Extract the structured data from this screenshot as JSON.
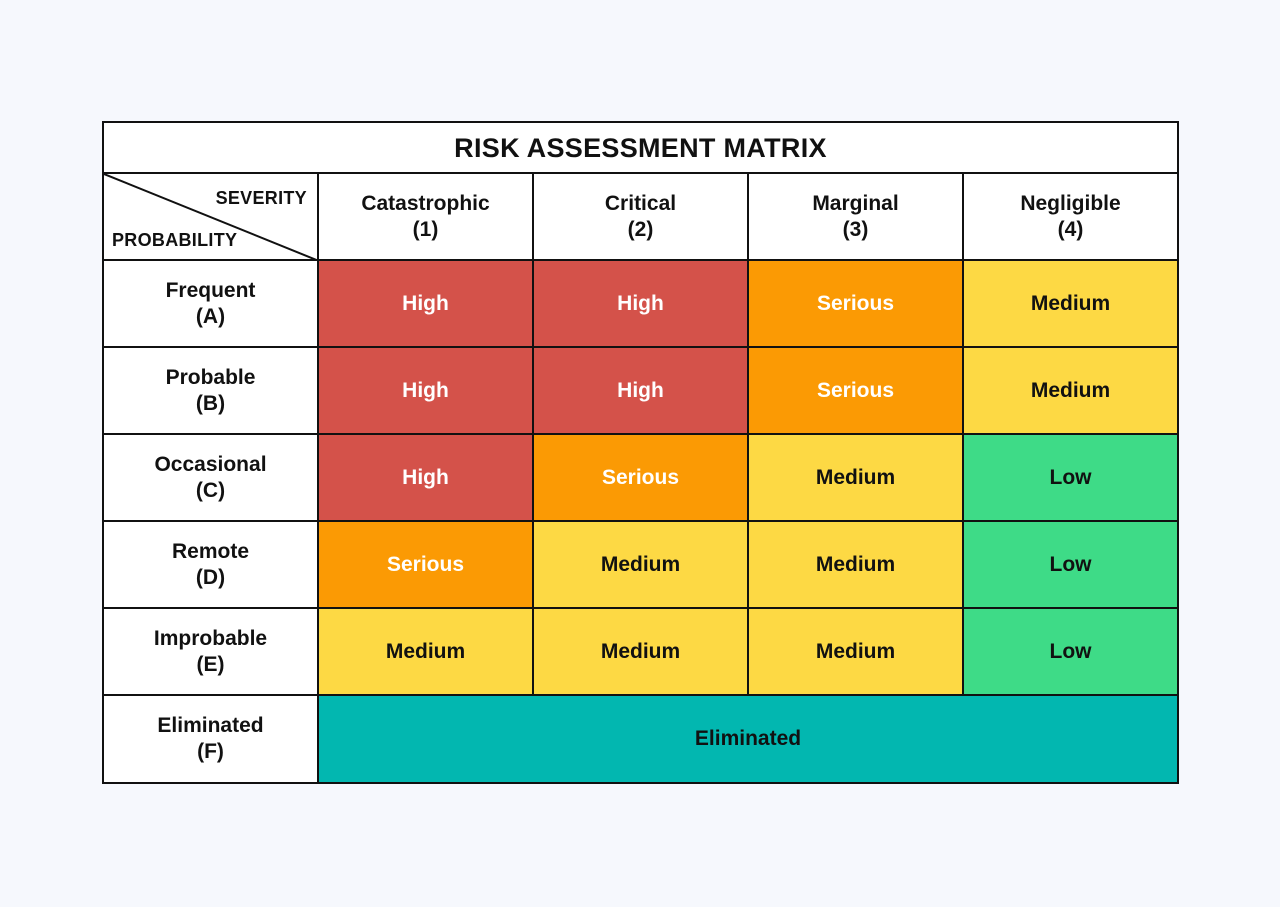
{
  "title": "RISK ASSESSMENT MATRIX",
  "corner": {
    "severity_label": "SEVERITY",
    "probability_label": "PROBABILITY"
  },
  "columns": [
    {
      "name": "Catastrophic",
      "code": "(1)"
    },
    {
      "name": "Critical",
      "code": "(2)"
    },
    {
      "name": "Marginal",
      "code": "(3)"
    },
    {
      "name": "Negligible",
      "code": "(4)"
    }
  ],
  "rows": [
    {
      "name": "Frequent",
      "code": "(A)",
      "cells": [
        "High",
        "High",
        "Serious",
        "Medium"
      ]
    },
    {
      "name": "Probable",
      "code": "(B)",
      "cells": [
        "High",
        "High",
        "Serious",
        "Medium"
      ]
    },
    {
      "name": "Occasional",
      "code": "(C)",
      "cells": [
        "High",
        "Serious",
        "Medium",
        "Low"
      ]
    },
    {
      "name": "Remote",
      "code": "(D)",
      "cells": [
        "Serious",
        "Medium",
        "Medium",
        "Low"
      ]
    },
    {
      "name": "Improbable",
      "code": "(E)",
      "cells": [
        "Medium",
        "Medium",
        "Medium",
        "Low"
      ]
    }
  ],
  "eliminated_row": {
    "name": "Eliminated",
    "code": "(F)",
    "value": "Eliminated"
  },
  "colors": {
    "High": "#d4524a",
    "Serious": "#fb9a04",
    "Medium": "#fdd944",
    "Low": "#3edb87",
    "Eliminated": "#02b7b0",
    "background": "#f6f8fd"
  }
}
